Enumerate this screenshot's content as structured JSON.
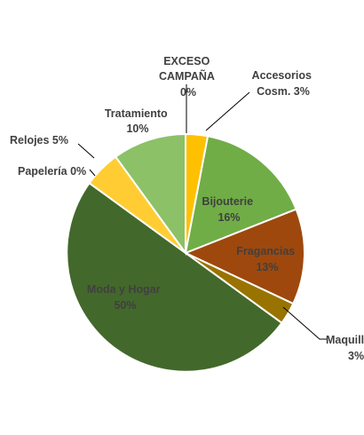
{
  "chart_data": {
    "type": "pie",
    "title": "",
    "start_angle_deg": 0,
    "direction": "clockwise",
    "slices": [
      {
        "name": "EXCESO CAMPAÑA",
        "value": 0,
        "label_lines": [
          "EXCESO",
          "CAMPAÑA"
        ],
        "pct_label": "0%",
        "color": "#FFC000"
      },
      {
        "name": "Accesorios Cosm.",
        "value": 3,
        "label_lines": [
          "Accesorios",
          "Cosm. 3%"
        ],
        "pct_label": "",
        "color": "#FFC000"
      },
      {
        "name": "Bijouterie",
        "value": 16,
        "label_lines": [
          "Bijouterie"
        ],
        "pct_label": "16%",
        "color": "#70AD47"
      },
      {
        "name": "Fragancias",
        "value": 13,
        "label_lines": [
          "Fragancias"
        ],
        "pct_label": "13%",
        "color": "#9E480E"
      },
      {
        "name": "Maquillaje",
        "value": 3,
        "label_lines": [
          "Maquill"
        ],
        "pct_label": "3%",
        "color": "#997300"
      },
      {
        "name": "Moda y Hogar",
        "value": 50,
        "label_lines": [
          "Moda y Hogar"
        ],
        "pct_label": "50%",
        "color": "#43682B"
      },
      {
        "name": "Papelería",
        "value": 0,
        "label_lines": [
          "Papelería 0%"
        ],
        "pct_label": "",
        "color": "#FFD966"
      },
      {
        "name": "Relojes",
        "value": 5,
        "label_lines": [
          "Relojes 5%"
        ],
        "pct_label": "",
        "color": "#FFCD33"
      },
      {
        "name": "Tratamiento",
        "value": 10,
        "label_lines": [
          "Tratamiento"
        ],
        "pct_label": "10%",
        "color": "#8CC168"
      }
    ]
  }
}
